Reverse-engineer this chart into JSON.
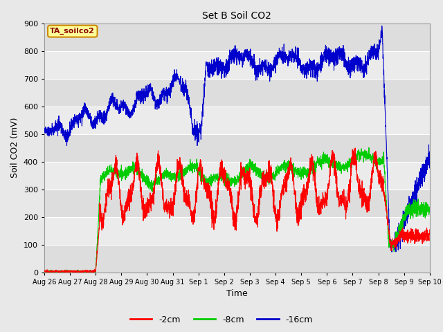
{
  "title": "Set B Soil CO2",
  "xlabel": "Time",
  "ylabel": "Soil CO2 (mV)",
  "ylim": [
    0,
    900
  ],
  "annotation_text": "TA_soilco2",
  "annotation_color": "#8b0000",
  "annotation_bg": "#ffff99",
  "annotation_border": "#cc8800",
  "series": {
    "red": {
      "label": "-2cm",
      "color": "#ff0000"
    },
    "green": {
      "label": "-8cm",
      "color": "#00cc00"
    },
    "blue": {
      "label": "-16cm",
      "color": "#0000cc"
    }
  },
  "x_tick_labels": [
    "Aug 26",
    "Aug 27",
    "Aug 28",
    "Aug 29",
    "Aug 30",
    "Aug 31",
    "Sep 1",
    "Sep 2",
    "Sep 3",
    "Sep 4",
    "Sep 5",
    "Sep 6",
    "Sep 7",
    "Sep 8",
    "Sep 9",
    "Sep 10"
  ],
  "bg_color": "#e8e8e8",
  "grid_color": "#ffffff"
}
